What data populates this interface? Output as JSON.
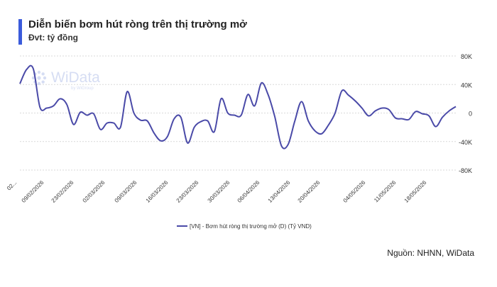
{
  "header": {
    "title": "Diễn biến bơm hút ròng trên thị trường mở",
    "subtitle": "Đvt: tỷ đồng"
  },
  "watermark": {
    "brand": "WiData",
    "tagline": "by WiGroup"
  },
  "source": "Nguồn: NHNN, WiData",
  "colors": {
    "line": "#4a4aa8",
    "accent": "#3b5bdb",
    "grid": "#d9d9d9",
    "watermark": "#d6ddf3"
  },
  "chart_data": {
    "type": "line",
    "ylim": [
      -80000,
      80000
    ],
    "yticks": [
      80000,
      40000,
      0,
      -40000,
      -80000
    ],
    "ytick_labels": [
      "80K",
      "40K",
      "0",
      "-40K",
      "-80K"
    ],
    "x_tick_labels": [
      "02...",
      "09/02/2026",
      "23/02/2026",
      "02/03/2026",
      "09/03/2026",
      "16/03/2026",
      "23/03/2026",
      "30/03/2026",
      "06/04/2026",
      "13/04/2026",
      "20/04/2026",
      "04/05/2026",
      "11/05/2026",
      "18/05/2026"
    ],
    "grid": true,
    "legend_position": "bottom",
    "series": [
      {
        "name": "[VN] - Bơm hút ròng thị trường mở (D) (Tỷ VND)",
        "values": [
          41000,
          61000,
          62000,
          8000,
          7000,
          10000,
          20000,
          12000,
          -16000,
          1000,
          -3000,
          -1000,
          -23000,
          -14000,
          -14000,
          -20000,
          30000,
          0,
          -10000,
          -11000,
          -28000,
          -39000,
          -33000,
          -8000,
          -6000,
          -42000,
          -20000,
          -12000,
          -11000,
          -26000,
          20000,
          0,
          -3000,
          -3000,
          26000,
          10000,
          42000,
          26000,
          -5000,
          -46000,
          -44000,
          -11000,
          16000,
          -11000,
          -25000,
          -29000,
          -17000,
          0,
          31000,
          25000,
          17000,
          7000,
          -4000,
          3000,
          7000,
          5000,
          -7000,
          -8000,
          -9000,
          2000,
          -1000,
          -4000,
          -19000,
          -6000,
          3000,
          9000
        ]
      }
    ]
  }
}
